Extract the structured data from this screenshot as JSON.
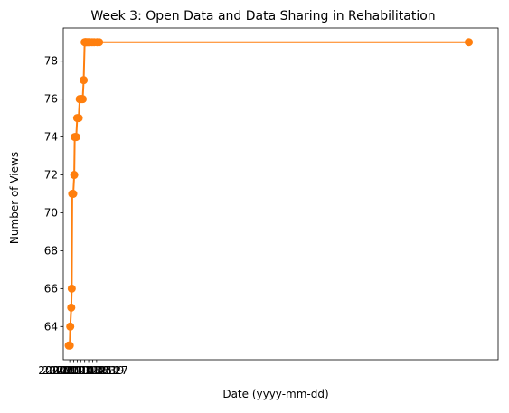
{
  "chart_data": {
    "type": "line",
    "title": "Week 3: Open Data and Data Sharing in Rehabilitation",
    "xlabel": "Date (yyyy-mm-dd)",
    "ylabel": "Number of Views",
    "ylim": [
      62.25,
      79.75
    ],
    "yticks": [
      64,
      66,
      68,
      70,
      72,
      74,
      76,
      78
    ],
    "xlim": [
      "2020-10-21",
      "2023-03-14"
    ],
    "x_tick_labels_overlapped": [
      "2020-11-03",
      "2020-11-11",
      "2020-11-18",
      "2020-11-25",
      "2020-12-03",
      "2020-12-11",
      "2020-12-19",
      "2020-12-27"
    ],
    "grid": false,
    "legend": "none",
    "colors": {
      "line": "#ff7f0e",
      "marker": "#ff7f0e",
      "axis": "#000000"
    },
    "series": [
      {
        "x": [
          "2020-11-01",
          "2020-11-03",
          "2020-11-04",
          "2020-11-06",
          "2020-11-07",
          "2020-11-08",
          "2020-11-10",
          "2020-11-12",
          "2020-11-13",
          "2020-11-15",
          "2020-11-16",
          "2020-11-18",
          "2020-11-21",
          "2020-11-23",
          "2020-11-25",
          "2020-11-27",
          "2020-11-29",
          "2020-12-01",
          "2020-12-03",
          "2020-12-04",
          "2020-12-05",
          "2020-12-06",
          "2020-12-08",
          "2020-12-10",
          "2020-12-12",
          "2020-12-14",
          "2020-12-18",
          "2020-12-22",
          "2020-12-28",
          "2021-01-01",
          "2023-01-14"
        ],
        "values": [
          63,
          63,
          64,
          65,
          66,
          71,
          71,
          72,
          74,
          74,
          74,
          75,
          75,
          76,
          76,
          76,
          76,
          77,
          79,
          79,
          79,
          79,
          79,
          79,
          79,
          79,
          79,
          79,
          79,
          79,
          79
        ]
      }
    ]
  }
}
